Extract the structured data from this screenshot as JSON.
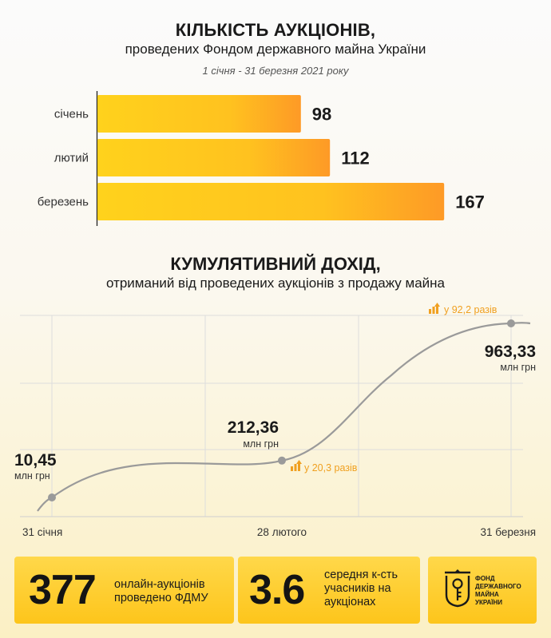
{
  "header": {
    "title": "КІЛЬКІСТЬ АУКЦІОНІВ,",
    "subtitle": "проведених Фондом державного майна України",
    "period": "1 січня - 31 березня 2021 року"
  },
  "chart_data": [
    {
      "type": "bar",
      "orientation": "horizontal",
      "categories": [
        "січень",
        "лютий",
        "березень"
      ],
      "values": [
        98,
        112,
        167
      ],
      "title": "КІЛЬКІСТЬ АУКЦІОНІВ,",
      "subtitle": "проведених Фондом державного майна України"
    },
    {
      "type": "line",
      "title": "КУМУЛЯТИВНИЙ ДОХІД,",
      "subtitle": "отриманий від проведених аукціонів з продажу майна",
      "x": [
        "31 січня",
        "28 лютого",
        "31 березня"
      ],
      "values": [
        10.45,
        212.36,
        963.33
      ],
      "value_labels": [
        "10,45",
        "212,36",
        "963,33"
      ],
      "unit": "млн грн",
      "growth_labels": [
        "у 20,3 разів",
        "у 92,2 разів"
      ],
      "grid": true
    }
  ],
  "section2": {
    "title": "КУМУЛЯТИВНИЙ ДОХІД,",
    "subtitle": "отриманий від проведених аукціонів з продажу майна"
  },
  "cards": [
    {
      "value": "377",
      "text_line1": "онлайн-аукціонів",
      "text_line2": "проведено ФДМУ"
    },
    {
      "value": "3.6",
      "text_line1": "середня к-сть",
      "text_line2": "учасників на",
      "text_line3": "аукціонах"
    }
  ],
  "logo": {
    "line1": "ФОНД",
    "line2": "ДЕРЖАВНОГО",
    "line3": "МАЙНА",
    "line4": "УКРАЇНИ"
  },
  "colors": {
    "accent": "#fdc51b",
    "bar_start": "#ffd21c",
    "bar_end": "#fe9a26",
    "growth": "#f0a020",
    "line": "#9a9a9a"
  }
}
